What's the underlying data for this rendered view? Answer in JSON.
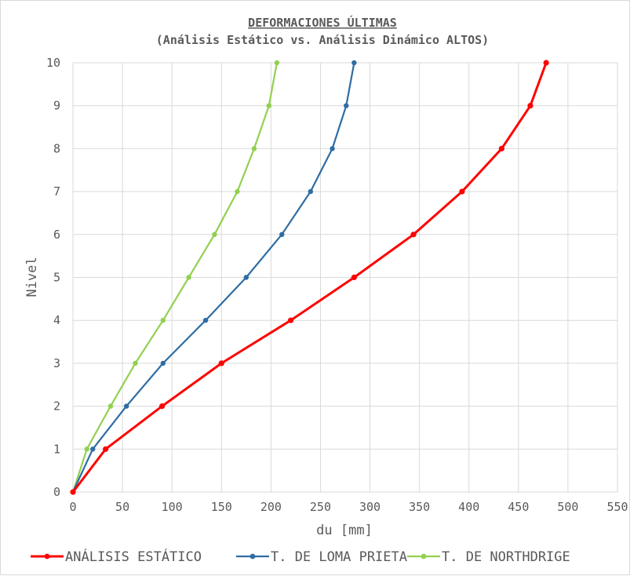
{
  "chart_data": {
    "type": "line",
    "title": "DEFORMACIONES ÚLTIMAS",
    "subtitle": "(Análisis Estático vs. Análisis Dinámico ALTOS)",
    "xlabel": "du [mm]",
    "ylabel": "Nivel",
    "xlim": [
      0,
      550
    ],
    "ylim": [
      0,
      10
    ],
    "x_ticks": [
      "0",
      "50",
      "100",
      "150",
      "200",
      "250",
      "300",
      "350",
      "400",
      "450",
      "500",
      "550"
    ],
    "y_ticks": [
      "0",
      "1",
      "2",
      "3",
      "4",
      "5",
      "6",
      "7",
      "8",
      "9",
      "10"
    ],
    "grid": true,
    "legend_position": "bottom",
    "series": [
      {
        "name": "ANÁLISIS ESTÁTICO",
        "color": "#ff0000",
        "points": [
          [
            0,
            0
          ],
          [
            33,
            1
          ],
          [
            90,
            2
          ],
          [
            150,
            3
          ],
          [
            220,
            4
          ],
          [
            284,
            5
          ],
          [
            344,
            6
          ],
          [
            393,
            7
          ],
          [
            433,
            8
          ],
          [
            462,
            9
          ],
          [
            478,
            10
          ]
        ]
      },
      {
        "name": "T. DE LOMA PRIETA",
        "color": "#2e6da4",
        "points": [
          [
            0,
            0
          ],
          [
            20,
            1
          ],
          [
            54,
            2
          ],
          [
            91,
            3
          ],
          [
            134,
            4
          ],
          [
            175,
            5
          ],
          [
            211,
            6
          ],
          [
            240,
            7
          ],
          [
            262,
            8
          ],
          [
            276,
            9
          ],
          [
            284,
            10
          ]
        ]
      },
      {
        "name": "T. DE NORTHDRIGE",
        "color": "#92d050",
        "points": [
          [
            0,
            0
          ],
          [
            14,
            1
          ],
          [
            38,
            2
          ],
          [
            63,
            3
          ],
          [
            91,
            4
          ],
          [
            117,
            5
          ],
          [
            143,
            6
          ],
          [
            166,
            7
          ],
          [
            183,
            8
          ],
          [
            198,
            9
          ],
          [
            206,
            10
          ]
        ]
      }
    ]
  }
}
